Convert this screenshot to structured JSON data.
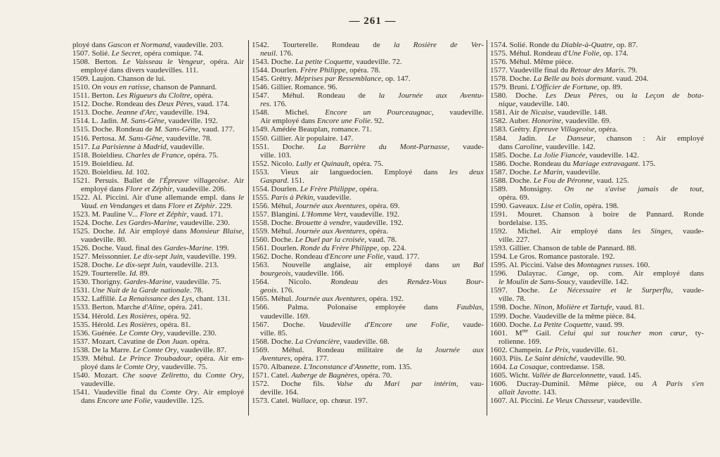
{
  "page_number": "— 261 —",
  "columns": [
    {
      "lines": [
        [
          "ployé dans ",
          {
            "i": "Gascon et Normand"
          },
          ", vaudeville. 203."
        ],
        [
          "1507. Solié. ",
          {
            "i": "Le Secret"
          },
          ", opéra comique. 74."
        ],
        [
          "1508. Berton. ",
          {
            "i": "Le Vaisseau le Vengeur"
          },
          ", opéra. Air"
        ],
        [
          "employé dans divers vaudevilles. 111."
        ],
        [
          "1509. Laujon. Chanson de lui."
        ],
        [
          "1510. ",
          {
            "i": "On vous en ratisse"
          },
          ", chanson de Pannard."
        ],
        [
          "1511. Berton. ",
          {
            "i": "Les Rigueurs du Cloître"
          },
          ", opéra."
        ],
        [
          "1512. Doche. Rondeau des ",
          {
            "i": "Deux Pères"
          },
          ", vaud. 174."
        ],
        [
          "1513. Doche. ",
          {
            "i": "Jeanne d'Arc"
          },
          ", vaudeville. 194."
        ],
        [
          "1514. L. Jadin. ",
          {
            "i": "M. Sans-Gêne"
          },
          ", vaudeville. 192."
        ],
        [
          "1515. Doche. Rondeau de ",
          {
            "i": "M. Sans-Gêne"
          },
          ", vaud. 177."
        ],
        [
          "1516. Pertosa. ",
          {
            "i": "M. Sans-Gêne"
          },
          ", vaudeville. 78."
        ],
        [
          "1517. ",
          {
            "i": "La Parisienne à Madrid"
          },
          ", vaudeville."
        ],
        [
          "1518. Boieldieu. ",
          {
            "i": "Charles de France"
          },
          ", opéra. 75."
        ],
        [
          "1519. Boieldieu. ",
          {
            "i": "Id."
          }
        ],
        [
          "1520. Boieldieu. ",
          {
            "i": "Id."
          },
          " 102."
        ],
        [
          "1521. Persuis. Ballet de ",
          {
            "i": "l'Épreuve villageoise"
          },
          ". Air"
        ],
        [
          "employé dans ",
          {
            "i": "Flore et Zéphir"
          },
          ", vaudeville. 206."
        ],
        [
          "1522. Al. Piccini. Air d'une allemande empl. dans ",
          {
            "i": "le"
          }
        ],
        [
          {
            "i": "Vaud. en Vendanges"
          },
          " et dans ",
          {
            "i": "Flore et Zéphir"
          },
          ". 229."
        ],
        [
          "1523. M. Pauline V... ",
          {
            "i": "Flore et Zéphir"
          },
          ", vaud. 171."
        ],
        [
          "1524. Doche. ",
          {
            "i": "Les Gardes-Marine"
          },
          ", vaudeville. 230."
        ],
        [
          "1525. Doche. ",
          {
            "i": "Id."
          },
          " Air employé dans ",
          {
            "i": "Monsieur Blaise"
          },
          ","
        ],
        [
          "vaudeville. 80."
        ],
        [
          "1526. Doche. Vaud. final des ",
          {
            "i": "Gardes-Marine"
          },
          ". 199."
        ],
        [
          "1527. Meissonnier. ",
          {
            "i": "Le dix-sept Juin"
          },
          ", vaudeville. 199."
        ],
        [
          "1528. Doche. ",
          {
            "i": "Le dix-sept Juin"
          },
          ", vaudeville. 213."
        ],
        [
          "1529. Tourterelle. ",
          {
            "i": "Id."
          },
          " 89."
        ],
        [
          "1530. Thorigny. ",
          {
            "i": "Gardes-Marine"
          },
          ", vaudeville. 75."
        ],
        [
          "1531. ",
          {
            "i": "Une Nuit de la Garde nationale"
          },
          ". 78."
        ],
        [
          "1532. Laffillé. ",
          {
            "i": "La Renaissance des Lys"
          },
          ", chant. 131."
        ],
        [
          "1533. Berton. Marche ",
          {
            "i": "d'Aline"
          },
          ", opéra. 241."
        ],
        [
          "1534. Hérold. ",
          {
            "i": "Les Rosières"
          },
          ", opéra. 92."
        ],
        [
          "1535. Hérold. ",
          {
            "i": "Les Rosières"
          },
          ", opéra. 81."
        ],
        [
          "1536. Guénée. ",
          {
            "i": "Le Comte Ory"
          },
          ", vaudeville. 230."
        ],
        [
          "1537. Mozart. Cavatine de ",
          {
            "i": "Don Juan"
          },
          ". opéra."
        ],
        [
          "1538. De la Marre. ",
          {
            "i": "Le Comte Ory"
          },
          ", vaudeville. 87."
        ],
        [
          "1539. Méhul. ",
          {
            "i": "Le Prince Troubadour"
          },
          ", opéra. Air em-"
        ],
        [
          "ployé dans ",
          {
            "i": "le Comte Ory"
          },
          ", vaudeville. 75."
        ],
        [
          "1540. Mozart. ",
          {
            "i": "Che soave Zeliretto"
          },
          ", du ",
          {
            "i": "Comte Ory"
          },
          ","
        ],
        [
          "vaudeville."
        ],
        [
          "1541. Vaudeville final du ",
          {
            "i": "Comte Ory"
          },
          ". Air employé"
        ],
        [
          "dans ",
          {
            "i": "Encore une Folie"
          },
          ", vaudeville. 125."
        ]
      ]
    },
    {
      "lines": [
        [
          "1542. Tourterelle. Rondeau de ",
          {
            "i": "la Rosière de Ver-"
          }
        ],
        [
          {
            "i": "neuil"
          },
          ". 176."
        ],
        [
          "1543. Doche. ",
          {
            "i": "La petite Coquette"
          },
          ", vaudeville. 72."
        ],
        [
          "1544. Dourlen. ",
          {
            "i": "Frère Philippe"
          },
          ", opéra. 78."
        ],
        [
          "1545. Grétry. ",
          {
            "i": "Méprises par Ressemblance"
          },
          ", op. 147."
        ],
        [
          "1546. Gillier. Romance. 96."
        ],
        [
          "1547. Méhul. Rondeau de ",
          {
            "i": "la Journée aux Aventu-"
          }
        ],
        [
          {
            "i": "res"
          },
          ". 176."
        ],
        [
          "1548. Michel. ",
          {
            "i": "Encore un Pourceaugnac"
          },
          ", vaudeville."
        ],
        [
          "Air employé dans ",
          {
            "i": "Encore une Folie"
          },
          ". 92."
        ],
        [
          "1549. Amédée Beauplan, romance. 71."
        ],
        [
          "1550. Gillier. Air populaire. 147."
        ],
        [
          "1551. Doche. ",
          {
            "i": "La Barrière du Mont-Parnasse"
          },
          ", vaude-"
        ],
        [
          "ville. 103."
        ],
        [
          "1552. Nicolo. ",
          {
            "i": "Lully et Quinault"
          },
          ", opéra. 75."
        ],
        [
          "1553. Vieux air languedocien. Employé dans ",
          {
            "i": "les deux"
          }
        ],
        [
          {
            "i": "Gaspard"
          },
          ". 151."
        ],
        [
          "1554. Dourlen. ",
          {
            "i": "Le Frère Philippe"
          },
          ", opéra."
        ],
        [
          "1555. ",
          {
            "i": "Paris à Pékin"
          },
          ", vaudeville."
        ],
        [
          "1556. Méhul, ",
          {
            "i": "Journée aux Aventures"
          },
          ", opéra. 69."
        ],
        [
          "1557. Blangini. ",
          {
            "i": "L'Homme Vert"
          },
          ", vaudeville. 192."
        ],
        [
          "1558. Doche. ",
          {
            "i": "Brouette à vendre"
          },
          ", vaudeville. 192."
        ],
        [
          "1559. Méhul. ",
          {
            "i": "Journée aux Aventures"
          },
          ", opéra."
        ],
        [
          "1560. Doche. ",
          {
            "i": "Le Duel par la croisée"
          },
          ", vaud. 78."
        ],
        [
          "1561. Dourlen. ",
          {
            "i": "Ronde du Frère Philippe"
          },
          ", op. 224."
        ],
        [
          "1562. Doche. Rondeau d'",
          {
            "i": "Encore une Folie"
          },
          ", vaud. 177."
        ],
        [
          "1563. Nouvelle anglaise, air employé dans ",
          {
            "i": "un Bal"
          }
        ],
        [
          {
            "i": "bourgeois"
          },
          ", vaudeville. 166."
        ],
        [
          "1564. Nicolo. ",
          {
            "i": "Rondeau des Rendez-Vous Bour-"
          }
        ],
        [
          {
            "i": "geois"
          },
          ". 176."
        ],
        [
          "1565. Méhul. ",
          {
            "i": "Journée aux Aventures"
          },
          ", opéra. 192."
        ],
        [
          "1566. Palma. Polonaise employée dans ",
          {
            "i": "Faublas"
          },
          ","
        ],
        [
          "vaudeville. 169."
        ],
        [
          "1567. Doche. ",
          {
            "i": "Vaudeville d'Encore une Folie"
          },
          ", vaude-"
        ],
        [
          "ville. 85."
        ],
        [
          "1568. Doche. ",
          {
            "i": "La Créancière"
          },
          ", vaudeville. 68."
        ],
        [
          "1569. Méhul. Rondeau militaire de ",
          {
            "i": "la Journée aux"
          }
        ],
        [
          {
            "i": "Aventures"
          },
          ", opéra. 177."
        ],
        [
          "1570. Albaneze. ",
          {
            "i": "L'Inconstance d'Annette"
          },
          ", rom. 135."
        ],
        [
          "1571. Catel. ",
          {
            "i": "Auberge de Bagnères"
          },
          ", opéra. 70."
        ],
        [
          "1572. Doche fils. ",
          {
            "i": "Valse du Mari par intérim"
          },
          ", vau-"
        ],
        [
          "deville. 164."
        ],
        [
          "1573. Catel. ",
          {
            "i": "Wallace"
          },
          ", op. chœur. 197."
        ]
      ]
    },
    {
      "lines": [
        [
          "1574. Solié. Ronde du ",
          {
            "i": "Diable-à-Quatre"
          },
          ", op. 87."
        ],
        [
          "1575. Méhul. Rondeau d'",
          {
            "i": "Une Folie"
          },
          ", op. 174."
        ],
        [
          "1576. Méhul. Même pièce."
        ],
        [
          "1577. Vaudeville final du ",
          {
            "i": "Retour des Maris"
          },
          ". 79."
        ],
        [
          "1578. Doche. ",
          {
            "i": "La Belle au bois dormant"
          },
          ". vaud. 204."
        ],
        [
          "1579. Bruni. ",
          {
            "i": "L'Officier de Fortune"
          },
          ", op. 89."
        ],
        [
          "1580. Doche. ",
          {
            "i": "Les Deux Pères"
          },
          ", ou ",
          {
            "i": "la Leçon de bota-"
          }
        ],
        [
          {
            "i": "nique"
          },
          ", vaudeville. 140."
        ],
        [
          "1581. Air de ",
          {
            "i": "Nicaise"
          },
          ", vaudeville. 148."
        ],
        [
          "1582. Auber. ",
          {
            "i": "Honorine"
          },
          ", vaudeville. 69."
        ],
        [
          "1583. Grétry. ",
          {
            "i": "Epreuve Villageoise"
          },
          ", opéra."
        ],
        [
          "1584. Jadin. ",
          {
            "i": "Le Danseur"
          },
          ", chanson : Air employé"
        ],
        [
          "dans ",
          {
            "i": "Caroline"
          },
          ", vaudeville. 142."
        ],
        [
          "1585. Doche. ",
          {
            "i": "La Jolie Fiancée"
          },
          ", vaudeville. 142."
        ],
        [
          "1586. Doche. Rondeau du ",
          {
            "i": "Mariage extravagant"
          },
          ". 175."
        ],
        [
          "1587. Doche. ",
          {
            "i": "Le Marin"
          },
          ", vaudeville."
        ],
        [
          "1588. Doche. ",
          {
            "i": "Le Fou de Péronne"
          },
          ", vaud. 125."
        ],
        [
          "1589. Monsigny. ",
          {
            "i": "On ne s'avise jamais de tout"
          },
          ","
        ],
        [
          "opéra. 69."
        ],
        [
          "1590. Gaveaux. ",
          {
            "i": "Lise et Colin"
          },
          ", opéra. 198."
        ],
        [
          "1591. Mouret. Chanson à boire de Pannard. Ronde"
        ],
        [
          "bordelaise. 135."
        ],
        [
          "1592. Michel. Air employé dans ",
          {
            "i": "les Singes"
          },
          ", vaude-"
        ],
        [
          "ville. 227."
        ],
        [
          "1593. Gillier. Chanson de table de Pannard. 88."
        ],
        [
          "1594. Le Gros. Romance pastorale. 192."
        ],
        [
          "1595. Al. Piccini. Valse des ",
          {
            "i": "Montagnes russes"
          },
          ". 160."
        ],
        [
          "1596. Dalayrac. ",
          {
            "i": "Cange"
          },
          ", op. com. Air employé dans"
        ],
        [
          {
            "i": "le Moulin de Sans-Soucy"
          },
          ", vaudeville. 142."
        ],
        [
          "1597. Doche. ",
          {
            "i": "Le Nécessaire et le Surperflu"
          },
          ", vaude-"
        ],
        [
          "ville. 78."
        ],
        [
          "1598. Doche. ",
          {
            "i": "Ninon, Molière et Tartufe"
          },
          ", vaud. 81."
        ],
        [
          "1599. Doche. Vaudeville de la même pièce. 84."
        ],
        [
          "1600. Doche. ",
          {
            "i": "La Petite Coquette"
          },
          ", vaud. 99."
        ],
        [
          "1601. M",
          {
            "sup": "me"
          },
          " Gail. ",
          {
            "i": "Celui qui sut toucher mon cœur"
          },
          ", ty-"
        ],
        [
          "rolienne. 169."
        ],
        [
          "1602. Champein. ",
          {
            "i": "Le Prix"
          },
          ", vaudeville. 61."
        ],
        [
          "1603. Piis. ",
          {
            "i": "Le Saint déniché"
          },
          ", vaudeville. 90."
        ],
        [
          "1604. ",
          {
            "i": "La Cosaque"
          },
          ", contredanse. 158."
        ],
        [
          "1605. Wicht. ",
          {
            "i": "Vallée de Barcelonnette"
          },
          ", vaud. 145."
        ],
        [
          "1606. Ducray-Duminil. Même pièce, ou ",
          {
            "i": "A Paris s'en"
          }
        ],
        [
          {
            "i": "allait Javotte"
          },
          ". 143."
        ],
        [
          "1607. Al. Piccini. ",
          {
            "i": "Le Vieux Chasseur"
          },
          ", vaudeville."
        ]
      ]
    }
  ]
}
